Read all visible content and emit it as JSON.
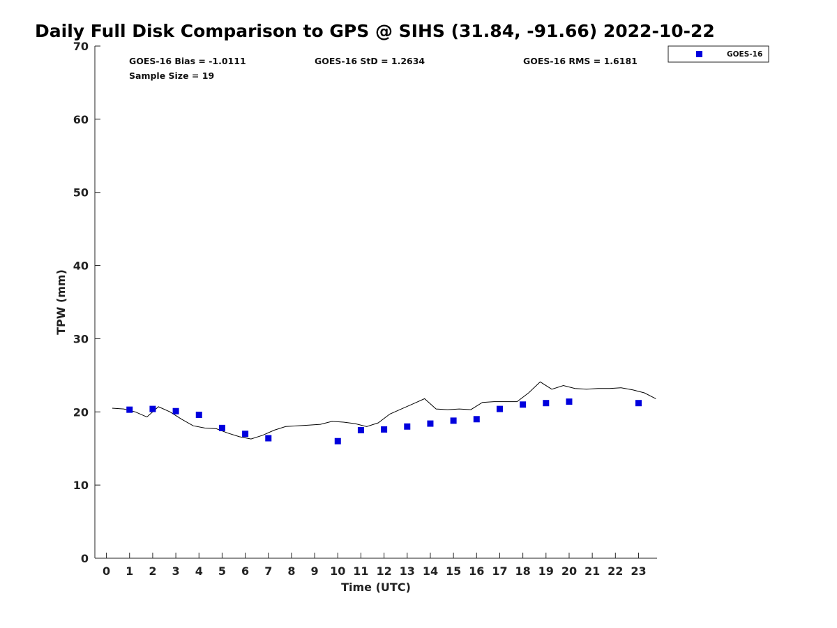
{
  "title": "Daily Full Disk Comparison to GPS @ SIHS (31.84, -91.66) 2022-10-22",
  "stats": {
    "bias": "GOES-16 Bias = -1.0111",
    "std": "GOES-16 StD = 1.2634",
    "rms": "GOES-16 RMS = 1.6181",
    "sample": "Sample Size = 19"
  },
  "colors": {
    "goes": "#0000dd",
    "gps_line": "#000000",
    "axis": "#222222"
  },
  "chart_data": {
    "type": "scatter",
    "xlabel": "Time (UTC)",
    "ylabel": "TPW (mm)",
    "xlim": [
      -0.5,
      23.8
    ],
    "ylim": [
      0,
      70
    ],
    "xticks": [
      0,
      1,
      2,
      3,
      4,
      5,
      6,
      7,
      8,
      9,
      10,
      11,
      12,
      13,
      14,
      15,
      16,
      17,
      18,
      19,
      20,
      21,
      22,
      23
    ],
    "yticks": [
      0,
      10,
      20,
      30,
      40,
      50,
      60,
      70
    ],
    "grid": false,
    "legend_position": "top-right outside",
    "series": [
      {
        "name": "GOES-16",
        "marker": "square",
        "x": [
          1,
          2,
          3,
          4,
          5,
          6,
          7,
          10,
          11,
          12,
          13,
          14,
          15,
          16,
          17,
          18,
          19,
          20,
          23
        ],
        "y": [
          20.3,
          20.4,
          20.1,
          19.6,
          17.8,
          17.0,
          16.4,
          16.0,
          17.5,
          17.6,
          18.0,
          18.4,
          18.8,
          19.0,
          20.4,
          21.0,
          21.2,
          21.4,
          21.2
        ]
      },
      {
        "marker": "line",
        "x": [
          0.25,
          0.75,
          1.25,
          1.75,
          2.25,
          2.75,
          3.25,
          3.75,
          4.25,
          4.75,
          5.25,
          5.75,
          6.25,
          6.75,
          7.25,
          7.75,
          8.25,
          8.75,
          9.25,
          9.75,
          10.25,
          10.75,
          11.25,
          11.75,
          12.25,
          12.75,
          13.25,
          13.75,
          14.25,
          14.75,
          15.25,
          15.75,
          16.25,
          16.75,
          17.25,
          17.75,
          18.25,
          18.75,
          19.25,
          19.75,
          20.25,
          20.75,
          21.25,
          21.75,
          22.25,
          22.75,
          23.25,
          23.75
        ],
        "y": [
          20.5,
          20.4,
          20.0,
          19.3,
          20.7,
          20.0,
          19.0,
          18.1,
          17.8,
          17.7,
          17.1,
          16.6,
          16.3,
          16.8,
          17.5,
          18.0,
          18.1,
          18.2,
          18.3,
          18.7,
          18.6,
          18.4,
          18.0,
          18.5,
          19.7,
          20.4,
          21.1,
          21.8,
          20.4,
          20.3,
          20.4,
          20.3,
          21.3,
          21.4,
          21.4,
          21.4,
          22.6,
          24.1,
          23.1,
          23.6,
          23.2,
          23.1,
          23.2,
          23.2,
          23.3,
          23.0,
          22.6,
          21.8
        ]
      }
    ]
  }
}
